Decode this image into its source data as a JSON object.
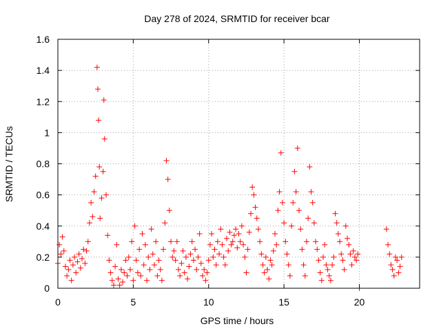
{
  "chart_data": {
    "type": "scatter",
    "title": "Day 278 of 2024, SRMTID for receiver bcar",
    "xlabel": "GPS time / hours",
    "ylabel": "SRMTID / TECUs",
    "xlim": [
      0,
      24
    ],
    "ylim": [
      0,
      1.6
    ],
    "xticks": [
      0,
      5,
      10,
      15,
      20
    ],
    "xtick_labels": [
      "0",
      "5",
      "10",
      "15",
      "20"
    ],
    "yticks": [
      0,
      0.2,
      0.4,
      0.6,
      0.8,
      1.0,
      1.2,
      1.4,
      1.6
    ],
    "ytick_labels": [
      "0",
      "0.2",
      "0.4",
      "0.6",
      "0.8",
      "1",
      "1.2",
      "1.4",
      "1.6"
    ],
    "grid": true,
    "marker": "+",
    "series": [
      {
        "name": "SRMTID",
        "color": "#ff0000",
        "x": [
          0.0,
          0.1,
          0.2,
          0.3,
          0.4,
          0.5,
          0.6,
          0.7,
          0.8,
          0.9,
          1.0,
          1.1,
          1.2,
          1.3,
          1.4,
          1.5,
          1.6,
          1.7,
          1.8,
          1.9,
          2.0,
          2.1,
          2.2,
          2.3,
          2.4,
          2.5,
          2.6,
          2.65,
          2.7,
          2.75,
          2.8,
          2.9,
          3.0,
          3.05,
          3.1,
          3.2,
          3.3,
          3.4,
          3.5,
          3.6,
          3.7,
          3.8,
          3.9,
          4.0,
          4.1,
          4.2,
          4.3,
          4.4,
          4.5,
          4.6,
          4.7,
          4.8,
          4.9,
          5.0,
          5.1,
          5.2,
          5.3,
          5.4,
          5.5,
          5.6,
          5.7,
          5.8,
          5.9,
          6.0,
          6.1,
          6.2,
          6.3,
          6.4,
          6.5,
          6.6,
          6.7,
          6.8,
          6.9,
          7.0,
          7.1,
          7.2,
          7.3,
          7.4,
          7.5,
          7.6,
          7.7,
          7.8,
          7.9,
          8.0,
          8.1,
          8.2,
          8.3,
          8.4,
          8.5,
          8.6,
          8.7,
          8.8,
          8.9,
          9.0,
          9.1,
          9.2,
          9.3,
          9.4,
          9.5,
          9.6,
          9.7,
          9.8,
          9.9,
          10.0,
          10.1,
          10.2,
          10.3,
          10.4,
          10.5,
          10.6,
          10.7,
          10.8,
          10.9,
          11.0,
          11.1,
          11.2,
          11.3,
          11.4,
          11.5,
          11.6,
          11.7,
          11.8,
          11.9,
          12.0,
          12.1,
          12.2,
          12.3,
          12.4,
          12.5,
          12.6,
          12.7,
          12.8,
          12.9,
          13.0,
          13.1,
          13.2,
          13.3,
          13.4,
          13.5,
          13.6,
          13.7,
          13.8,
          13.9,
          14.0,
          14.1,
          14.2,
          14.3,
          14.4,
          14.5,
          14.6,
          14.7,
          14.8,
          14.9,
          15.0,
          15.1,
          15.2,
          15.3,
          15.4,
          15.5,
          15.6,
          15.7,
          15.8,
          15.9,
          16.0,
          16.1,
          16.2,
          16.3,
          16.4,
          16.5,
          16.6,
          16.7,
          16.8,
          16.9,
          17.0,
          17.1,
          17.2,
          17.3,
          17.4,
          17.5,
          17.6,
          17.7,
          17.8,
          17.9,
          18.0,
          18.1,
          18.2,
          18.3,
          18.4,
          18.5,
          18.6,
          18.7,
          18.8,
          18.9,
          19.0,
          19.1,
          19.2,
          19.3,
          19.4,
          19.5,
          19.6,
          19.7,
          19.8,
          19.9,
          20.0,
          21.8,
          21.9,
          22.0,
          22.1,
          22.2,
          22.3,
          22.4,
          22.5,
          22.6,
          22.7,
          22.8
        ],
        "y": [
          0.16,
          0.28,
          0.22,
          0.33,
          0.24,
          0.14,
          0.08,
          0.12,
          0.18,
          0.05,
          0.15,
          0.2,
          0.1,
          0.17,
          0.22,
          0.13,
          0.19,
          0.25,
          0.16,
          0.24,
          0.3,
          0.42,
          0.55,
          0.46,
          0.62,
          0.72,
          1.42,
          1.28,
          1.08,
          0.78,
          0.45,
          0.58,
          0.75,
          1.21,
          0.96,
          0.6,
          0.34,
          0.18,
          0.1,
          0.05,
          0.02,
          0.14,
          0.28,
          0.06,
          0.02,
          0.12,
          0.04,
          0.1,
          0.18,
          0.08,
          0.2,
          0.12,
          0.3,
          0.05,
          0.4,
          0.18,
          0.1,
          0.25,
          0.08,
          0.35,
          0.15,
          0.28,
          0.05,
          0.2,
          0.12,
          0.38,
          0.22,
          0.15,
          0.3,
          0.08,
          0.18,
          0.12,
          0.05,
          0.25,
          0.42,
          0.82,
          0.7,
          0.5,
          0.3,
          0.2,
          0.24,
          0.18,
          0.3,
          0.12,
          0.08,
          0.16,
          0.24,
          0.1,
          0.2,
          0.06,
          0.14,
          0.22,
          0.3,
          0.18,
          0.25,
          0.12,
          0.2,
          0.35,
          0.16,
          0.08,
          0.12,
          0.05,
          0.1,
          0.18,
          0.28,
          0.35,
          0.2,
          0.25,
          0.15,
          0.3,
          0.22,
          0.38,
          0.28,
          0.2,
          0.15,
          0.32,
          0.24,
          0.36,
          0.28,
          0.3,
          0.34,
          0.38,
          0.26,
          0.35,
          0.3,
          0.4,
          0.28,
          0.2,
          0.1,
          0.25,
          0.36,
          0.48,
          0.65,
          0.6,
          0.52,
          0.45,
          0.38,
          0.3,
          0.22,
          0.15,
          0.1,
          0.2,
          0.12,
          0.06,
          0.18,
          0.15,
          0.24,
          0.35,
          0.28,
          0.5,
          0.62,
          0.87,
          0.55,
          0.42,
          0.3,
          0.22,
          0.15,
          0.08,
          0.4,
          0.55,
          0.75,
          0.62,
          0.9,
          0.5,
          0.38,
          0.25,
          0.15,
          0.08,
          0.3,
          0.45,
          0.78,
          0.62,
          0.55,
          0.42,
          0.3,
          0.25,
          0.18,
          0.1,
          0.05,
          0.2,
          0.28,
          0.15,
          0.12,
          0.08,
          0.05,
          0.15,
          0.2,
          0.48,
          0.42,
          0.35,
          0.3,
          0.22,
          0.18,
          0.12,
          0.4,
          0.32,
          0.28,
          0.22,
          0.15,
          0.24,
          0.2,
          0.18,
          0.22,
          0.0,
          0.38,
          0.28,
          0.22,
          0.15,
          0.12,
          0.08,
          0.2,
          0.18,
          0.1,
          0.14,
          0.2
        ]
      }
    ]
  }
}
